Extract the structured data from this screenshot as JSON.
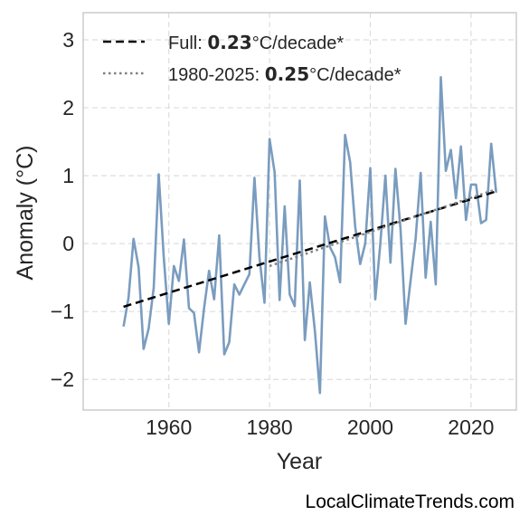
{
  "chart_data": {
    "type": "line",
    "xlabel": "Year",
    "ylabel": "Anomaly (°C)",
    "xlim": [
      1943,
      2029
    ],
    "ylim": [
      -2.45,
      3.4
    ],
    "xticks": [
      1960,
      1980,
      2000,
      2020
    ],
    "yticks": [
      -2,
      -1,
      0,
      1,
      2,
      3
    ],
    "ytick_labels": [
      "−2",
      "−1",
      "0",
      "1",
      "2",
      "3"
    ],
    "grid": true,
    "legend_placement": "top-left",
    "series": [
      {
        "kind": "data",
        "color": "#7a9cbf",
        "x": [
          1951,
          1952,
          1953,
          1954,
          1955,
          1956,
          1957,
          1958,
          1959,
          1960,
          1961,
          1962,
          1963,
          1964,
          1965,
          1966,
          1967,
          1968,
          1969,
          1970,
          1971,
          1972,
          1973,
          1974,
          1975,
          1976,
          1977,
          1978,
          1979,
          1980,
          1981,
          1982,
          1983,
          1984,
          1985,
          1986,
          1987,
          1988,
          1989,
          1990,
          1991,
          1992,
          1993,
          1994,
          1995,
          1996,
          1997,
          1998,
          1999,
          2000,
          2001,
          2002,
          2003,
          2004,
          2005,
          2006,
          2007,
          2008,
          2009,
          2010,
          2011,
          2012,
          2013,
          2014,
          2015,
          2016,
          2017,
          2018,
          2019,
          2020,
          2021,
          2022,
          2023,
          2024,
          2025
        ],
        "y": [
          -1.22,
          -0.8,
          0.07,
          -0.35,
          -1.55,
          -1.25,
          -0.65,
          1.02,
          -0.2,
          -1.18,
          -0.33,
          -0.55,
          0.06,
          -0.95,
          -1.02,
          -1.6,
          -0.95,
          -0.4,
          -0.82,
          0.12,
          -1.63,
          -1.45,
          -0.6,
          -0.75,
          -0.6,
          -0.45,
          0.97,
          -0.2,
          -0.87,
          1.54,
          1.05,
          -0.83,
          0.55,
          -0.75,
          -0.92,
          0.93,
          -1.42,
          -0.57,
          -1.28,
          -2.2,
          0.4,
          -0.05,
          -0.2,
          -0.57,
          1.6,
          1.2,
          0.25,
          -0.3,
          0.0,
          1.11,
          -0.82,
          0.0,
          1.0,
          -0.28,
          1.1,
          0.22,
          -1.18,
          -0.55,
          0.07,
          1.04,
          -0.5,
          0.32,
          -0.6,
          2.45,
          1.07,
          1.38,
          0.67,
          1.43,
          0.35,
          0.87,
          0.87,
          0.3,
          0.35,
          1.47,
          0.75
        ]
      },
      {
        "kind": "trend",
        "name": "Full",
        "rate": "0.23",
        "unit": "°C/decade*",
        "color": "#000000",
        "style": "dashed",
        "x": [
          1951,
          2025
        ],
        "y": [
          -0.93,
          0.77
        ]
      },
      {
        "kind": "trend",
        "name": "1980-2025",
        "rate": "0.25",
        "unit": "°C/decade*",
        "color": "#808080",
        "style": "dotted",
        "x": [
          1980,
          2025
        ],
        "y": [
          -0.33,
          0.8
        ]
      }
    ]
  },
  "legend": {
    "full_prefix": "Full: ",
    "full_rate": "0.23",
    "full_suffix": "°C/decade*",
    "recent_prefix": "1980-2025: ",
    "recent_rate": "0.25",
    "recent_suffix": "°C/decade*"
  },
  "watermark": "LocalClimateTrends.com"
}
